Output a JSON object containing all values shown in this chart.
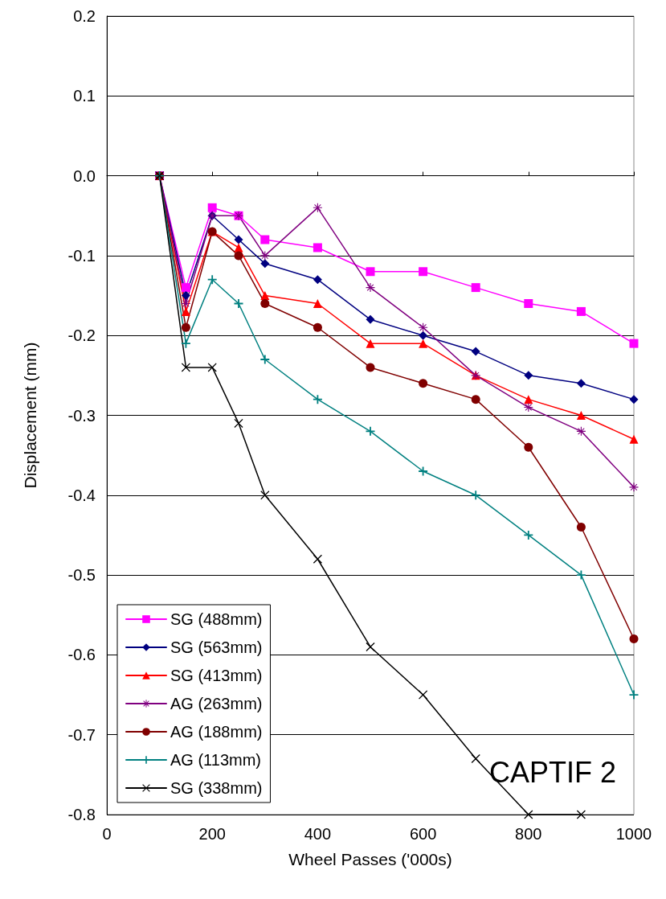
{
  "chart_data": {
    "type": "line",
    "xlabel": "Wheel Passes ('000s)",
    "ylabel": "Displacement (mm)",
    "x": [
      100,
      150,
      200,
      250,
      300,
      400,
      500,
      600,
      700,
      800,
      900,
      1000
    ],
    "series": [
      {
        "name": "SG (488mm)",
        "color": "#ff00ff",
        "marker": "square",
        "values": [
          0,
          -0.14,
          -0.04,
          -0.05,
          -0.08,
          -0.09,
          -0.12,
          -0.12,
          -0.14,
          -0.16,
          -0.17,
          -0.21
        ]
      },
      {
        "name": "SG (563mm)",
        "color": "#000080",
        "marker": "diamond",
        "values": [
          0,
          -0.15,
          -0.05,
          -0.08,
          -0.11,
          -0.13,
          -0.18,
          -0.2,
          -0.22,
          -0.25,
          -0.26,
          -0.28
        ]
      },
      {
        "name": "SG (413mm)",
        "color": "#ff0000",
        "marker": "triangle",
        "values": [
          0,
          -0.17,
          -0.07,
          -0.09,
          -0.15,
          -0.16,
          -0.21,
          -0.21,
          -0.25,
          -0.28,
          -0.3,
          -0.33
        ]
      },
      {
        "name": "AG (263mm)",
        "color": "#800080",
        "marker": "star",
        "values": [
          0,
          -0.16,
          -0.05,
          -0.05,
          -0.1,
          -0.04,
          -0.14,
          -0.19,
          -0.25,
          -0.29,
          -0.32,
          -0.39
        ]
      },
      {
        "name": "AG (188mm)",
        "color": "#800000",
        "marker": "circle",
        "values": [
          0,
          -0.19,
          -0.07,
          -0.1,
          -0.16,
          -0.19,
          -0.24,
          -0.26,
          -0.28,
          -0.34,
          -0.44,
          -0.58
        ]
      },
      {
        "name": "AG (113mm)",
        "color": "#008080",
        "marker": "plus",
        "values": [
          0,
          -0.21,
          -0.13,
          -0.16,
          -0.23,
          -0.28,
          -0.32,
          -0.37,
          -0.4,
          -0.45,
          -0.5,
          -0.65
        ]
      },
      {
        "name": "SG (338mm)",
        "color": "#000000",
        "marker": "cross",
        "values": [
          0,
          -0.24,
          -0.24,
          -0.31,
          -0.4,
          -0.48,
          -0.59,
          -0.65,
          -0.73,
          -0.8,
          -0.8,
          null
        ]
      }
    ],
    "xlim": [
      0,
      1000
    ],
    "xticks": [
      0,
      200,
      400,
      600,
      800,
      1000
    ],
    "ylim": [
      -0.8,
      0.2
    ],
    "yticks": [
      -0.8,
      -0.7,
      -0.6,
      -0.5,
      -0.4,
      -0.3,
      -0.2,
      -0.1,
      {
        "value": 0,
        "label": "0.0"
      },
      0.1,
      0.2
    ],
    "grid": "y",
    "legend": "bottom left",
    "line_style": "solid",
    "annotations": [
      "CAPTIF 2"
    ]
  }
}
